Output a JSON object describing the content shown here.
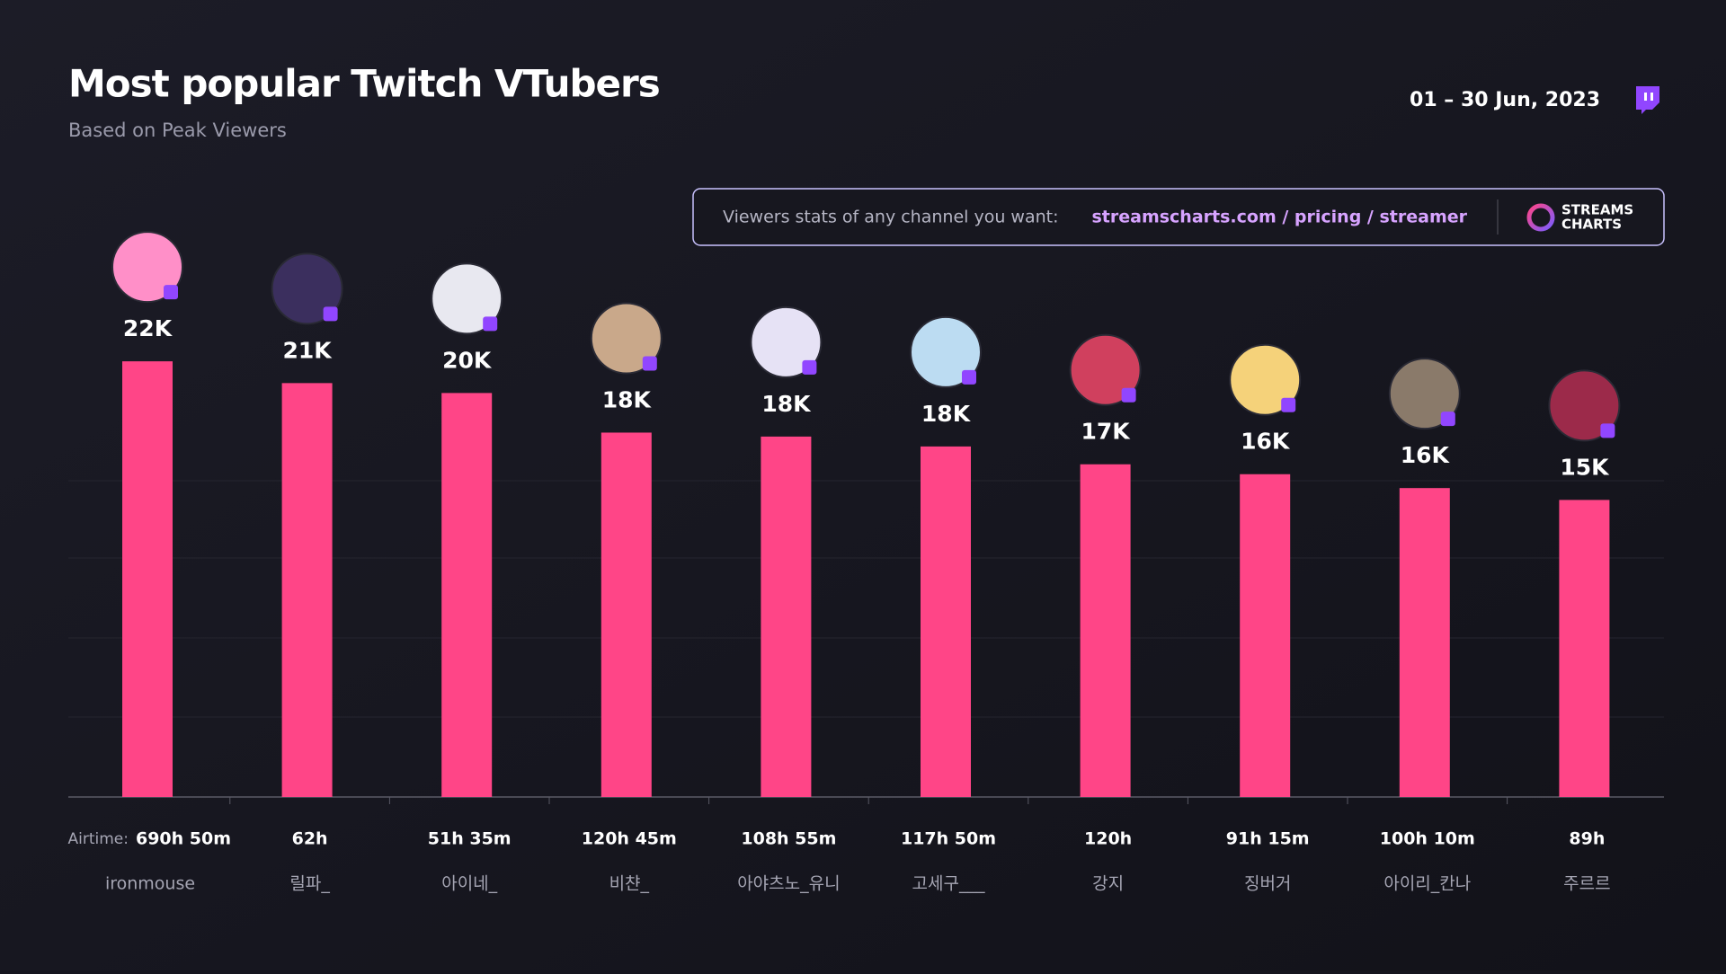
{
  "chart_data": {
    "type": "bar",
    "title": "Most popular Twitch VTubers",
    "subtitle": "Based on Peak Viewers",
    "date_range": "01 – 30 Jun, 2023",
    "banner_text": "Viewers stats of any channel you want:",
    "banner_link": "streamscharts.com / pricing / streamer",
    "brand": [
      "STREAMS",
      "CHARTS"
    ],
    "airtime_label": "Airtime:",
    "categories": [
      "ironmouse",
      "릴파_",
      "아이네_",
      "비챤_",
      "아야츠노_유니",
      "고세구___",
      "강지",
      "징버거",
      "아이리_칸나",
      "주르르"
    ],
    "airtime": [
      "690h 50m",
      "62h",
      "51h 35m",
      "120h 45m",
      "108h 55m",
      "117h 50m",
      "120h",
      "91h 15m",
      "100h 10m",
      "89h"
    ],
    "values": [
      22000,
      20900,
      20400,
      18400,
      18200,
      17700,
      16800,
      16300,
      15600,
      15000
    ],
    "value_labels": [
      "22K",
      "21K",
      "20K",
      "18K",
      "18K",
      "18K",
      "17K",
      "16K",
      "16K",
      "15K"
    ],
    "color": "#ff4587",
    "ylim": [
      0,
      25000
    ]
  }
}
